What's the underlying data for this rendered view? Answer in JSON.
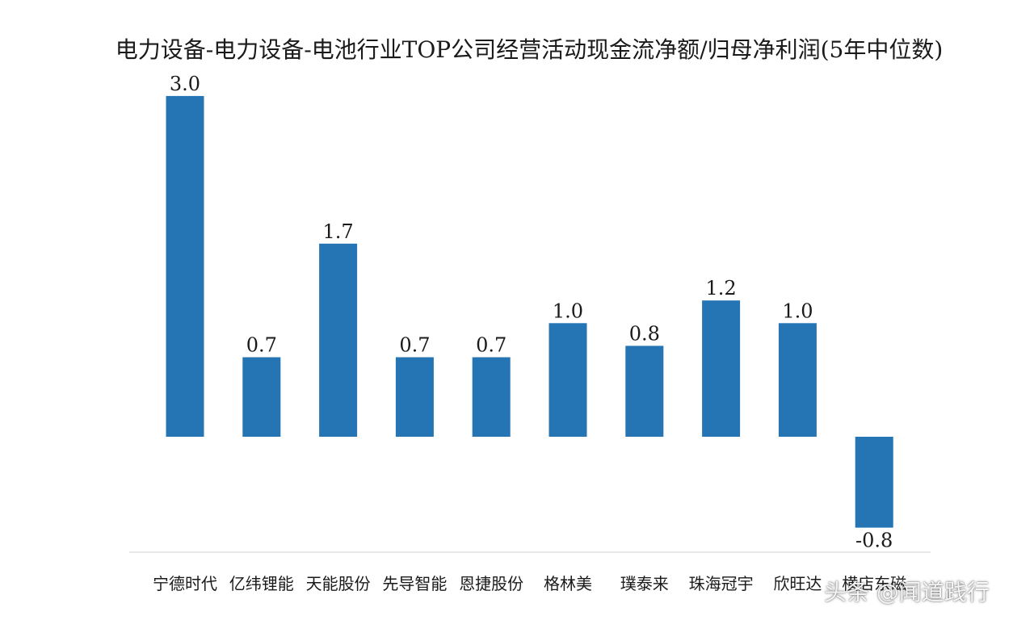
{
  "chart_data": {
    "type": "bar",
    "title": "电力设备-电力设备-电池行业TOP公司经营活动现金流净额/归母净利润(5年中位数)",
    "categories": [
      "宁德时代",
      "亿纬锂能",
      "天能股份",
      "先导智能",
      "恩捷股份",
      "格林美",
      "璞泰来",
      "珠海冠宇",
      "欣旺达",
      "横店东磁"
    ],
    "values": [
      3.0,
      0.7,
      1.7,
      0.7,
      0.7,
      1.0,
      0.8,
      1.2,
      1.0,
      -0.8
    ],
    "value_labels": [
      "3.0",
      "0.7",
      "1.7",
      "0.7",
      "0.7",
      "1.0",
      "0.8",
      "1.2",
      "1.0",
      "-0.8"
    ],
    "ylim": [
      -0.95,
      3.0
    ],
    "xlabel": "",
    "ylabel": "",
    "grid": false,
    "legend": "none",
    "bar_color": "#2575b5",
    "axis_color": "#d0d0d0"
  },
  "watermark": "头条 @闻道践行"
}
